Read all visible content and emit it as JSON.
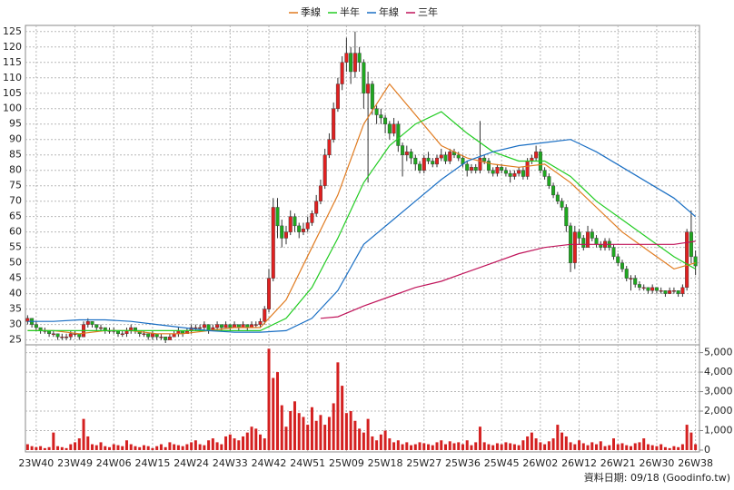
{
  "chart_data": {
    "type": "candlestick",
    "note": "資料日期: 09/18  (Goodinfo.tw)",
    "up_color": "#e02020",
    "down_color": "#1fa81f",
    "volume_color": "#d42020",
    "grid": true,
    "categories": [
      null,
      null,
      "23W40",
      null,
      null,
      null,
      null,
      null,
      null,
      null,
      null,
      "23W49",
      null,
      null,
      null,
      null,
      null,
      null,
      null,
      null,
      "24W06",
      null,
      null,
      null,
      null,
      null,
      null,
      null,
      null,
      "24W15",
      null,
      null,
      null,
      null,
      null,
      null,
      null,
      null,
      "24W24",
      null,
      null,
      null,
      null,
      null,
      null,
      null,
      null,
      "24W33",
      null,
      null,
      null,
      null,
      null,
      null,
      null,
      null,
      "24W42",
      null,
      null,
      null,
      null,
      null,
      null,
      null,
      null,
      "24W51",
      null,
      null,
      null,
      null,
      null,
      null,
      null,
      null,
      "25W09",
      null,
      null,
      null,
      null,
      null,
      null,
      null,
      null,
      "25W18",
      null,
      null,
      null,
      null,
      null,
      null,
      null,
      null,
      "25W27",
      null,
      null,
      null,
      null,
      null,
      null,
      null,
      null,
      "25W36",
      null,
      null,
      null,
      null,
      null,
      null,
      null,
      null,
      "25W45",
      null,
      null,
      null,
      null,
      null,
      null,
      null,
      null,
      "26W02",
      null,
      null,
      null,
      null,
      null,
      null,
      null,
      null,
      "26W12",
      null,
      null,
      null,
      null,
      null,
      null,
      null,
      null,
      "26W21",
      null,
      null,
      null,
      null,
      null,
      null,
      null,
      null,
      "26W30",
      null,
      null,
      null,
      null,
      null,
      null,
      null,
      null,
      "26W38"
    ],
    "candles": [
      [
        31,
        33,
        30,
        32
      ],
      [
        32,
        32,
        29,
        30
      ],
      [
        30,
        31,
        28,
        29
      ],
      [
        29,
        29,
        27,
        28
      ],
      [
        28,
        29,
        27,
        28
      ],
      [
        28,
        28,
        26,
        27
      ],
      [
        27,
        28,
        26,
        27
      ],
      [
        27,
        27,
        25,
        26
      ],
      [
        26,
        27,
        25,
        26
      ],
      [
        26,
        27,
        25,
        26
      ],
      [
        26,
        28,
        25,
        27
      ],
      [
        27,
        28,
        26,
        27
      ],
      [
        27,
        27,
        25,
        26
      ],
      [
        26,
        31,
        26,
        30
      ],
      [
        30,
        32,
        29,
        31
      ],
      [
        31,
        31,
        29,
        30
      ],
      [
        30,
        30,
        28,
        29
      ],
      [
        29,
        30,
        28,
        29
      ],
      [
        29,
        29,
        27,
        28
      ],
      [
        28,
        29,
        27,
        28
      ],
      [
        28,
        29,
        27,
        28
      ],
      [
        28,
        28,
        26,
        27
      ],
      [
        27,
        28,
        26,
        27
      ],
      [
        27,
        29,
        26,
        28
      ],
      [
        28,
        30,
        27,
        29
      ],
      [
        29,
        29,
        27,
        28
      ],
      [
        28,
        28,
        26,
        27
      ],
      [
        27,
        28,
        26,
        27
      ],
      [
        27,
        27,
        25,
        26
      ],
      [
        26,
        28,
        25,
        27
      ],
      [
        27,
        27,
        25,
        26
      ],
      [
        26,
        27,
        25,
        26
      ],
      [
        26,
        26,
        24,
        25
      ],
      [
        25,
        27,
        25,
        26
      ],
      [
        26,
        28,
        26,
        27
      ],
      [
        27,
        29,
        26,
        28
      ],
      [
        28,
        28,
        26,
        27
      ],
      [
        27,
        29,
        27,
        28
      ],
      [
        28,
        30,
        27,
        29
      ],
      [
        29,
        30,
        28,
        29
      ],
      [
        29,
        30,
        28,
        29
      ],
      [
        29,
        31,
        28,
        30
      ],
      [
        30,
        30,
        27,
        28
      ],
      [
        28,
        30,
        28,
        29
      ],
      [
        29,
        31,
        28,
        30
      ],
      [
        30,
        30,
        28,
        29
      ],
      [
        29,
        31,
        29,
        30
      ],
      [
        30,
        30,
        28,
        29
      ],
      [
        29,
        31,
        29,
        30
      ],
      [
        30,
        30,
        28,
        29
      ],
      [
        29,
        31,
        29,
        30
      ],
      [
        30,
        30,
        28,
        29
      ],
      [
        29,
        31,
        29,
        30
      ],
      [
        30,
        31,
        29,
        30
      ],
      [
        30,
        32,
        29,
        31
      ],
      [
        31,
        36,
        30,
        35
      ],
      [
        35,
        48,
        34,
        45
      ],
      [
        45,
        71,
        44,
        68
      ],
      [
        68,
        71,
        58,
        62
      ],
      [
        62,
        64,
        55,
        58
      ],
      [
        58,
        62,
        56,
        60
      ],
      [
        60,
        67,
        59,
        65
      ],
      [
        65,
        66,
        60,
        62
      ],
      [
        62,
        63,
        58,
        60
      ],
      [
        60,
        63,
        59,
        61
      ],
      [
        61,
        65,
        60,
        63
      ],
      [
        63,
        67,
        62,
        66
      ],
      [
        66,
        72,
        65,
        70
      ],
      [
        70,
        77,
        69,
        75
      ],
      [
        75,
        87,
        74,
        85
      ],
      [
        85,
        92,
        84,
        90
      ],
      [
        90,
        102,
        89,
        100
      ],
      [
        100,
        110,
        99,
        108
      ],
      [
        108,
        117,
        106,
        115
      ],
      [
        115,
        123,
        112,
        118
      ],
      [
        118,
        120,
        108,
        112
      ],
      [
        112,
        125,
        110,
        118
      ],
      [
        118,
        120,
        112,
        115
      ],
      [
        115,
        116,
        100,
        105
      ],
      [
        105,
        112,
        76,
        108
      ],
      [
        108,
        109,
        98,
        100
      ],
      [
        100,
        101,
        95,
        98
      ],
      [
        98,
        100,
        95,
        97
      ],
      [
        97,
        98,
        92,
        95
      ],
      [
        95,
        96,
        90,
        92
      ],
      [
        92,
        97,
        91,
        95
      ],
      [
        95,
        96,
        86,
        88
      ],
      [
        88,
        89,
        78,
        85
      ],
      [
        85,
        88,
        83,
        86
      ],
      [
        86,
        87,
        82,
        84
      ],
      [
        84,
        85,
        80,
        82
      ],
      [
        82,
        83,
        79,
        80
      ],
      [
        80,
        85,
        79,
        84
      ],
      [
        84,
        86,
        82,
        83
      ],
      [
        83,
        84,
        81,
        82
      ],
      [
        82,
        85,
        81,
        84
      ],
      [
        84,
        87,
        83,
        85
      ],
      [
        85,
        86,
        82,
        83
      ],
      [
        83,
        87,
        82,
        86
      ],
      [
        86,
        87,
        84,
        85
      ],
      [
        85,
        86,
        83,
        84
      ],
      [
        84,
        85,
        81,
        82
      ],
      [
        82,
        83,
        78,
        80
      ],
      [
        80,
        82,
        79,
        81
      ],
      [
        81,
        82,
        79,
        80
      ],
      [
        80,
        96,
        79,
        84
      ],
      [
        84,
        85,
        82,
        83
      ],
      [
        83,
        84,
        79,
        80
      ],
      [
        80,
        81,
        78,
        79
      ],
      [
        79,
        82,
        78,
        81
      ],
      [
        81,
        82,
        79,
        80
      ],
      [
        80,
        81,
        78,
        79
      ],
      [
        79,
        80,
        76,
        78
      ],
      [
        78,
        80,
        77,
        79
      ],
      [
        79,
        81,
        78,
        80
      ],
      [
        80,
        81,
        77,
        78
      ],
      [
        78,
        84,
        77,
        83
      ],
      [
        83,
        85,
        82,
        84
      ],
      [
        84,
        88,
        83,
        86
      ],
      [
        86,
        87,
        79,
        80
      ],
      [
        80,
        81,
        77,
        78
      ],
      [
        78,
        79,
        74,
        75
      ],
      [
        75,
        76,
        71,
        72
      ],
      [
        72,
        73,
        69,
        70
      ],
      [
        70,
        71,
        67,
        68
      ],
      [
        68,
        69,
        60,
        62
      ],
      [
        62,
        63,
        47,
        50
      ],
      [
        50,
        62,
        48,
        60
      ],
      [
        60,
        61,
        56,
        58
      ],
      [
        58,
        59,
        54,
        55
      ],
      [
        55,
        62,
        55,
        60
      ],
      [
        60,
        61,
        57,
        58
      ],
      [
        58,
        59,
        55,
        56
      ],
      [
        56,
        57,
        54,
        55
      ],
      [
        55,
        58,
        54,
        57
      ],
      [
        57,
        58,
        54,
        55
      ],
      [
        55,
        56,
        51,
        52
      ],
      [
        52,
        53,
        49,
        50
      ],
      [
        50,
        51,
        47,
        48
      ],
      [
        48,
        49,
        44,
        45
      ],
      [
        45,
        46,
        41,
        45
      ],
      [
        45,
        46,
        42,
        43
      ],
      [
        43,
        44,
        41,
        42
      ],
      [
        42,
        43,
        41,
        42
      ],
      [
        42,
        42,
        40,
        41
      ],
      [
        41,
        43,
        40,
        42
      ],
      [
        42,
        42,
        40,
        41
      ],
      [
        41,
        42,
        40,
        41
      ],
      [
        41,
        41,
        39,
        40
      ],
      [
        40,
        42,
        40,
        41
      ],
      [
        41,
        42,
        40,
        41
      ],
      [
        41,
        41,
        39,
        40
      ],
      [
        40,
        43,
        39,
        42
      ],
      [
        42,
        61,
        41,
        60
      ],
      [
        60,
        67,
        50,
        52
      ],
      [
        52,
        54,
        46,
        49
      ]
    ],
    "volume": [
      300,
      200,
      150,
      200,
      100,
      150,
      900,
      200,
      150,
      100,
      300,
      400,
      600,
      1600,
      700,
      300,
      250,
      400,
      200,
      150,
      300,
      250,
      200,
      500,
      300,
      200,
      150,
      250,
      200,
      100,
      200,
      300,
      150,
      400,
      300,
      250,
      200,
      300,
      400,
      500,
      300,
      250,
      500,
      600,
      400,
      300,
      700,
      800,
      600,
      500,
      700,
      900,
      1200,
      1100,
      800,
      600,
      5200,
      3700,
      4000,
      2300,
      1200,
      2000,
      2500,
      1900,
      1700,
      1300,
      2200,
      1500,
      1800,
      1300,
      1700,
      2400,
      4500,
      3300,
      1900,
      2000,
      1500,
      1100,
      900,
      1600,
      700,
      500,
      800,
      1000,
      600,
      400,
      500,
      300,
      400,
      250,
      300,
      400,
      350,
      300,
      250,
      400,
      500,
      300,
      450,
      350,
      400,
      300,
      500,
      250,
      400,
      1200,
      400,
      300,
      250,
      350,
      300,
      400,
      350,
      300,
      250,
      500,
      700,
      900,
      600,
      400,
      300,
      450,
      600,
      1300,
      900,
      700,
      400,
      300,
      500,
      350,
      250,
      400,
      300,
      450,
      200,
      250,
      600,
      300,
      350,
      250,
      200,
      350,
      400,
      600,
      300,
      250,
      200,
      300,
      150,
      100,
      200,
      150,
      300,
      1300,
      900,
      300
    ],
    "series": [
      {
        "name": "季線",
        "color": "#e07b20",
        "x": [
          0,
          6,
          12,
          18,
          24,
          30,
          36,
          42,
          48,
          54,
          60,
          66,
          72,
          78,
          84,
          90,
          96,
          102,
          108,
          114,
          120,
          126,
          132,
          138,
          144,
          150,
          155
        ],
        "values": [
          28,
          28,
          27,
          28,
          28,
          27,
          27,
          28,
          29,
          29,
          38,
          55,
          72,
          95,
          108,
          98,
          88,
          84,
          82,
          81,
          82,
          76,
          68,
          60,
          54,
          48,
          50
        ]
      },
      {
        "name": "半年",
        "color": "#22cc22",
        "x": [
          0,
          6,
          12,
          18,
          24,
          30,
          36,
          42,
          48,
          54,
          60,
          66,
          72,
          78,
          84,
          90,
          96,
          102,
          108,
          114,
          120,
          126,
          132,
          138,
          144,
          150,
          155
        ],
        "values": [
          28,
          28,
          28,
          28,
          28,
          28,
          28,
          28,
          28,
          28,
          32,
          42,
          58,
          76,
          88,
          95,
          99,
          92,
          86,
          83,
          83,
          78,
          70,
          64,
          58,
          52,
          48
        ]
      },
      {
        "name": "年線",
        "color": "#1a6fc4",
        "x": [
          0,
          6,
          12,
          18,
          24,
          30,
          36,
          42,
          48,
          54,
          60,
          66,
          72,
          78,
          84,
          90,
          96,
          102,
          108,
          114,
          120,
          126,
          132,
          138,
          144,
          150,
          155
        ],
        "values": [
          31,
          31,
          31.5,
          31.5,
          31,
          30,
          29,
          28,
          27.5,
          27.5,
          28,
          32,
          41,
          56,
          63,
          70,
          77,
          83,
          86,
          88,
          89,
          90,
          86,
          81,
          76,
          71,
          65
        ]
      },
      {
        "name": "三年",
        "color": "#c0145a",
        "x": [
          68,
          72,
          78,
          84,
          90,
          96,
          102,
          108,
          114,
          120,
          126,
          132,
          138,
          144,
          150,
          155
        ],
        "values": [
          32,
          32.5,
          36,
          39,
          42,
          44,
          47,
          50,
          53,
          55,
          56,
          56,
          56,
          56,
          56,
          57
        ]
      }
    ],
    "ylim": [
      24,
      127
    ],
    "yticks": [
      25,
      30,
      35,
      40,
      45,
      50,
      55,
      60,
      65,
      70,
      75,
      80,
      85,
      90,
      95,
      100,
      105,
      110,
      115,
      120,
      125
    ],
    "y2lim": [
      0,
      5400
    ],
    "y2ticks": [
      0,
      {
        "value": 1000,
        "label": "1,000"
      },
      {
        "value": 2000,
        "label": "2,000"
      },
      {
        "value": 3000,
        "label": "3,000"
      },
      {
        "value": 4000,
        "label": "4,000"
      },
      {
        "value": 5000,
        "label": "5,000"
      }
    ]
  }
}
